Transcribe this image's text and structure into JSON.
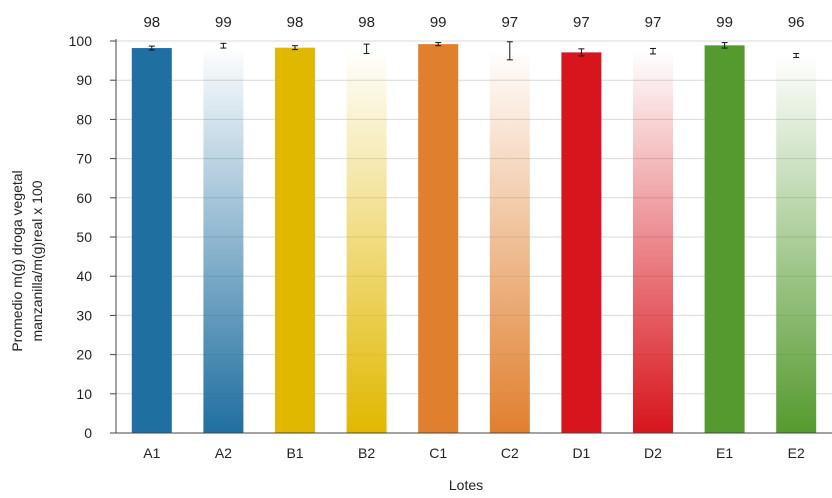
{
  "chart_data": {
    "type": "bar",
    "categories": [
      "A1",
      "A2",
      "B1",
      "B2",
      "C1",
      "C2",
      "D1",
      "D2",
      "E1",
      "E2"
    ],
    "values": [
      98,
      99,
      98,
      98,
      99,
      97,
      97,
      97,
      99,
      96
    ],
    "plotted_values": [
      98.2,
      98.8,
      98.3,
      98.0,
      99.2,
      97.5,
      97.1,
      97.4,
      98.9,
      96.3
    ],
    "error": [
      0.5,
      0.6,
      0.5,
      1.2,
      0.4,
      2.3,
      0.9,
      0.7,
      0.7,
      0.5
    ],
    "data_labels": [
      "98",
      "99",
      "98",
      "98",
      "99",
      "97",
      "97",
      "97",
      "99",
      "96"
    ],
    "fill_style": [
      "solid",
      "gradient",
      "solid",
      "gradient",
      "solid",
      "gradient",
      "solid",
      "gradient",
      "solid",
      "gradient"
    ],
    "colors": [
      "#1f6fa0",
      "#1f6fa0",
      "#e1b800",
      "#e1b800",
      "#e07f2e",
      "#e07f2e",
      "#d8141c",
      "#d8141c",
      "#559a2f",
      "#559a2f"
    ],
    "ylim": [
      0,
      100
    ],
    "yticks": [
      0,
      10,
      20,
      30,
      40,
      50,
      60,
      70,
      80,
      90,
      100
    ],
    "ylabel_lines": [
      "Promedio m(g) droga vegetal",
      "manzanilla/m(g)real x 100"
    ],
    "xlabel": "Lotes",
    "title": "",
    "grid": true
  }
}
